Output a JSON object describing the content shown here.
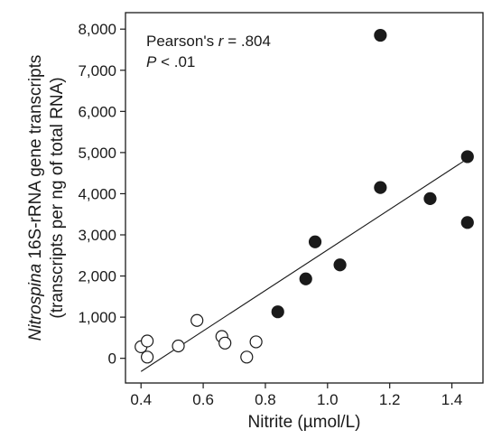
{
  "chart_data": {
    "type": "scatter",
    "xlabel": "Nitrite (µmol/L)",
    "ylabel": {
      "prefix_italic": "Nitrospina",
      "line1_rest": " 16S-rRNA gene transcripts",
      "line2": "(transcripts per ng of total RNA)"
    },
    "xlim": [
      0.35,
      1.5
    ],
    "ylim": [
      -600,
      8400
    ],
    "x_ticks": [
      0.4,
      0.6,
      0.8,
      1.0,
      1.2,
      1.4
    ],
    "x_tick_labels": [
      "0.4",
      "0.6",
      "0.8",
      "1.0",
      "1.2",
      "1.4"
    ],
    "y_ticks": [
      0,
      1000,
      2000,
      3000,
      4000,
      5000,
      6000,
      7000,
      8000
    ],
    "y_tick_labels": [
      "0",
      "1,000",
      "2,000",
      "3,000",
      "4,000",
      "5,000",
      "6,000",
      "7,000",
      "8,000"
    ],
    "grid": false,
    "series": [
      {
        "marker": "open-circle",
        "x": [
          0.4,
          0.42,
          0.42,
          0.52,
          0.58,
          0.66,
          0.67,
          0.74,
          0.77
        ],
        "y": [
          280,
          420,
          30,
          300,
          920,
          530,
          370,
          30,
          400
        ]
      },
      {
        "marker": "filled-circle",
        "x": [
          0.84,
          0.93,
          0.96,
          1.04,
          1.17,
          1.17,
          1.33,
          1.45,
          1.45
        ],
        "y": [
          1130,
          1930,
          2830,
          2270,
          7850,
          4150,
          3880,
          4900,
          3300
        ]
      }
    ],
    "regression_line": {
      "x": [
        0.4,
        1.45
      ],
      "y": [
        -320,
        4850
      ]
    },
    "annotation": {
      "pearson_prefix": "Pearson's ",
      "pearson_r_symbol": "r",
      "pearson_value": " = .804",
      "p_symbol": "P",
      "p_value": " < .01"
    },
    "colors": {
      "axis": "#1a1a1a",
      "filled_marker": "#1a1a1a",
      "open_marker_fill": "#ffffff",
      "line": "#1a1a1a"
    }
  }
}
